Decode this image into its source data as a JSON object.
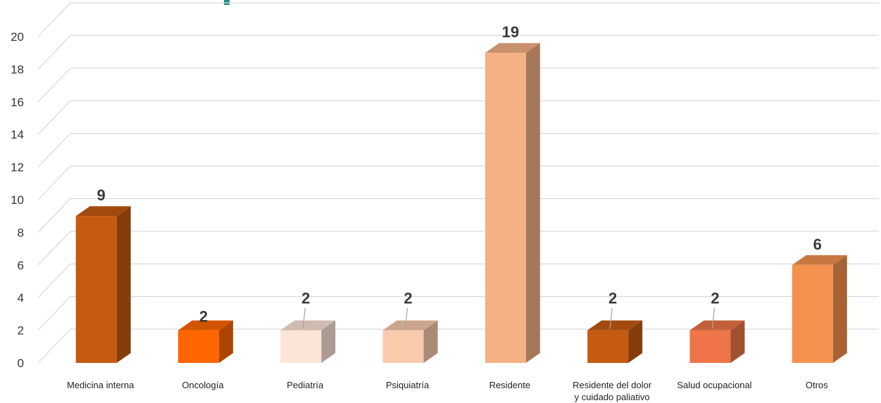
{
  "chart_data": {
    "type": "bar",
    "title": "",
    "xlabel": "",
    "ylabel": "",
    "ylim": [
      0,
      20
    ],
    "yticks": [
      0,
      2,
      4,
      6,
      8,
      10,
      12,
      14,
      16,
      18,
      20
    ],
    "grid": true,
    "style": "3d-columns",
    "categories": [
      [
        "Medicina interna"
      ],
      [
        "Oncología"
      ],
      [
        "Pediatría"
      ],
      [
        "Psiquiatría"
      ],
      [
        "Residente"
      ],
      [
        "Residente del dolor",
        "y cuidado paliativo"
      ],
      [
        "Salud ocupacional"
      ],
      [
        "Otros"
      ]
    ],
    "values": [
      9,
      2,
      2,
      2,
      19,
      2,
      2,
      6
    ],
    "colors": [
      "#C55A11",
      "#FF6600",
      "#FCE4D6",
      "#F8CBAD",
      "#F4B183",
      "#C55A11",
      "#ED7548",
      "#F4914F"
    ]
  }
}
